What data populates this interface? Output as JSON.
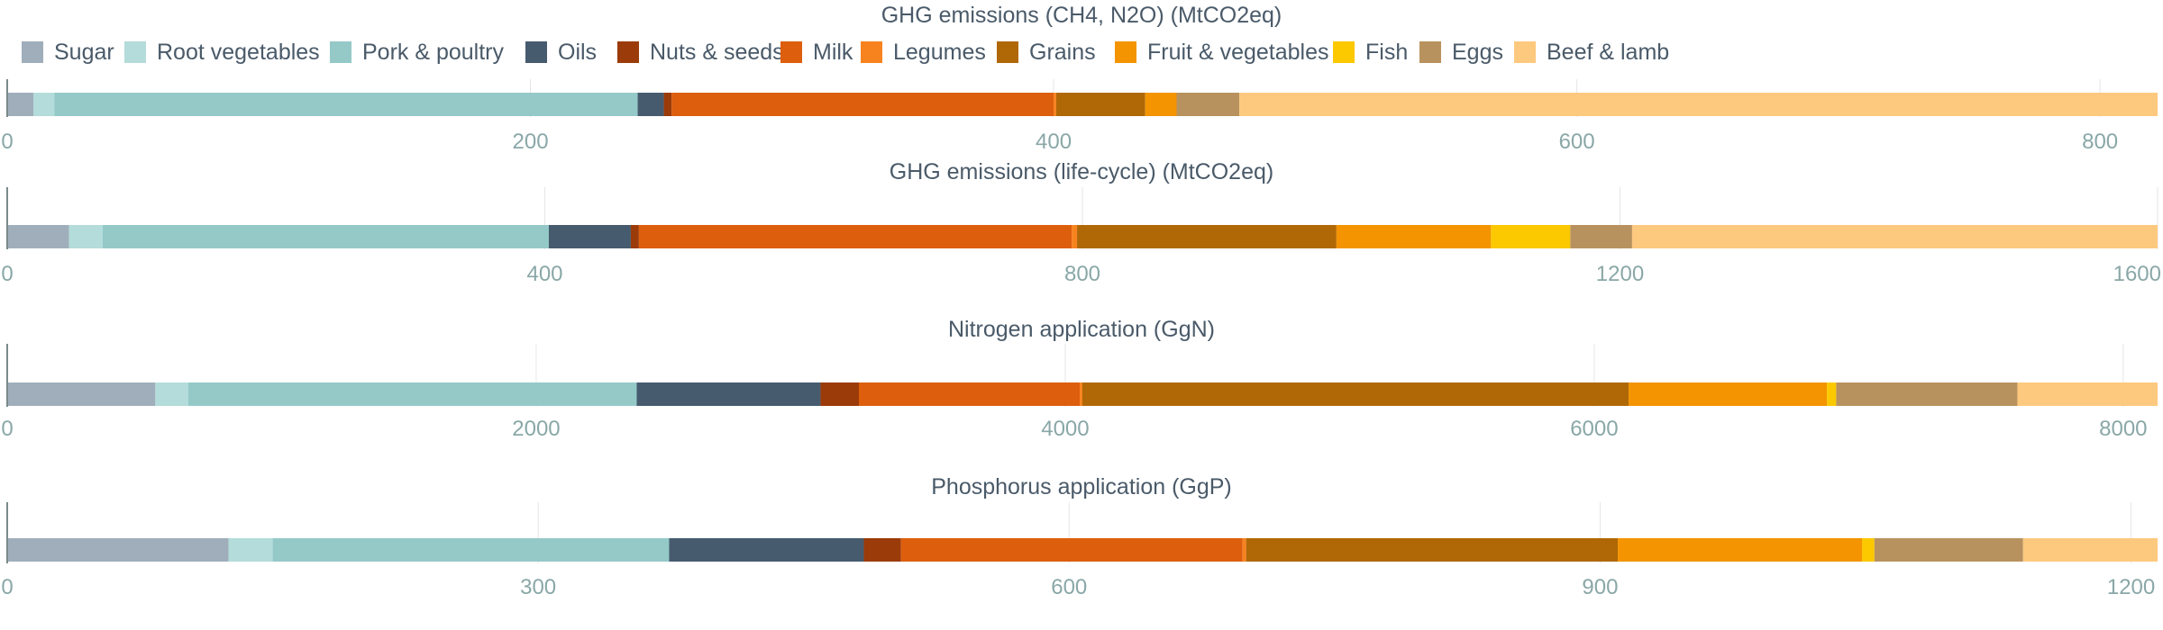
{
  "colors": {
    "Sugar": "#a0aebb",
    "Root vegetables": "#b3dcda",
    "Pork & poultry": "#94c9c8",
    "Oils": "#465b6e",
    "Nuts & seeds": "#9b3b09",
    "Milk": "#dd5e0c",
    "Legumes": "#f7831f",
    "Grains": "#b06806",
    "Fruit & vegetables": "#f39400",
    "Fish": "#fcc800",
    "Eggs": "#b8925e",
    "Beef & lamb": "#fdc97f"
  },
  "chart_data": {
    "type": "bar",
    "orientation": "horizontal",
    "stacked": true,
    "legend": {
      "position": "top",
      "entries": [
        "Sugar",
        "Root vegetables",
        "Pork & poultry",
        "Oils",
        "Nuts & seeds",
        "Milk",
        "Legumes",
        "Grains",
        "Fruit & vegetables",
        "Fish",
        "Eggs",
        "Beef & lamb"
      ]
    },
    "panels": [
      {
        "title": "GHG emissions (CH4, N2O) (MtCO2eq)",
        "xlim": [
          0,
          822
        ],
        "ticks": [
          0,
          200,
          400,
          600,
          800
        ],
        "tick_labels": [
          "0",
          "200",
          "400",
          "600",
          "800"
        ],
        "grid": true,
        "segments": [
          {
            "category": "Sugar",
            "value": 10
          },
          {
            "category": "Root vegetables",
            "value": 8
          },
          {
            "category": "Pork & poultry",
            "value": 223
          },
          {
            "category": "Oils",
            "value": 10
          },
          {
            "category": "Nuts & seeds",
            "value": 3
          },
          {
            "category": "Milk",
            "value": 146
          },
          {
            "category": "Legumes",
            "value": 1
          },
          {
            "category": "Grains",
            "value": 34
          },
          {
            "category": "Fruit & vegetables",
            "value": 12
          },
          {
            "category": "Fish",
            "value": 0
          },
          {
            "category": "Eggs",
            "value": 24
          },
          {
            "category": "Beef & lamb",
            "value": 351
          }
        ]
      },
      {
        "title": "GHG emissions (life-cycle) (MtCO2eq)",
        "xlim": [
          0,
          1600
        ],
        "ticks": [
          0,
          400,
          800,
          1200,
          1600
        ],
        "tick_labels": [
          "0",
          "400",
          "800",
          "1200",
          "1600"
        ],
        "grid": true,
        "segments": [
          {
            "category": "Sugar",
            "value": 46
          },
          {
            "category": "Root vegetables",
            "value": 25
          },
          {
            "category": "Pork & poultry",
            "value": 332
          },
          {
            "category": "Oils",
            "value": 61
          },
          {
            "category": "Nuts & seeds",
            "value": 6
          },
          {
            "category": "Milk",
            "value": 322
          },
          {
            "category": "Legumes",
            "value": 4
          },
          {
            "category": "Grains",
            "value": 193
          },
          {
            "category": "Fruit & vegetables",
            "value": 115
          },
          {
            "category": "Fish",
            "value": 59
          },
          {
            "category": "Eggs",
            "value": 46
          },
          {
            "category": "Beef & lamb",
            "value": 391
          }
        ]
      },
      {
        "title": "Nitrogen application (GgN)",
        "xlim": [
          0,
          8130
        ],
        "ticks": [
          0,
          2000,
          4000,
          6000,
          8000
        ],
        "tick_labels": [
          "0",
          "2000",
          "4000",
          "6000",
          "8000"
        ],
        "grid": true,
        "segments": [
          {
            "category": "Sugar",
            "value": 560
          },
          {
            "category": "Root vegetables",
            "value": 125
          },
          {
            "category": "Pork & poultry",
            "value": 1695
          },
          {
            "category": "Oils",
            "value": 695
          },
          {
            "category": "Nuts & seeds",
            "value": 145
          },
          {
            "category": "Milk",
            "value": 835
          },
          {
            "category": "Legumes",
            "value": 10
          },
          {
            "category": "Grains",
            "value": 2065
          },
          {
            "category": "Fruit & vegetables",
            "value": 750
          },
          {
            "category": "Fish",
            "value": 35
          },
          {
            "category": "Eggs",
            "value": 685
          },
          {
            "category": "Beef & lamb",
            "value": 530
          }
        ]
      },
      {
        "title": "Phosphorus application (GgP)",
        "xlim": [
          0,
          1215
        ],
        "ticks": [
          0,
          300,
          600,
          900,
          1200
        ],
        "tick_labels": [
          "0",
          "300",
          "600",
          "900",
          "1200"
        ],
        "grid": true,
        "segments": [
          {
            "category": "Sugar",
            "value": 125
          },
          {
            "category": "Root vegetables",
            "value": 25
          },
          {
            "category": "Pork & poultry",
            "value": 224
          },
          {
            "category": "Oils",
            "value": 110
          },
          {
            "category": "Nuts & seeds",
            "value": 21
          },
          {
            "category": "Milk",
            "value": 193
          },
          {
            "category": "Legumes",
            "value": 2
          },
          {
            "category": "Grains",
            "value": 210
          },
          {
            "category": "Fruit & vegetables",
            "value": 138
          },
          {
            "category": "Fish",
            "value": 7
          },
          {
            "category": "Eggs",
            "value": 84
          },
          {
            "category": "Beef & lamb",
            "value": 76
          }
        ]
      }
    ]
  }
}
